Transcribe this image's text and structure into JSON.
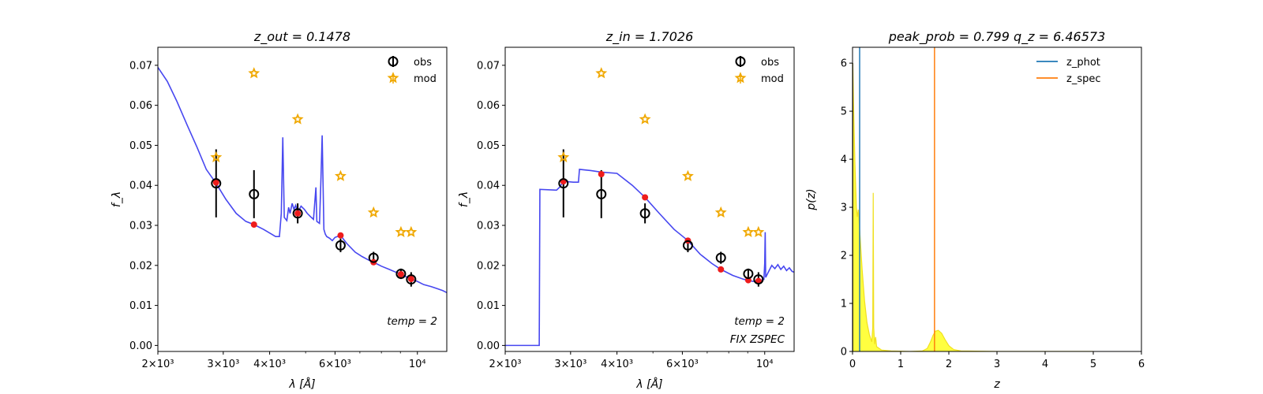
{
  "figure": {
    "background": "#ffffff"
  },
  "chart_data": [
    {
      "type": "scatter",
      "title_math": "z_{out} = 0.1478",
      "title_plain": "z_out = 0.1478",
      "xlabel": "λ [Å]",
      "ylabel": "f_λ",
      "x_scale": "log",
      "xlim": [
        2000,
        12000
      ],
      "ylim": [
        -0.0015,
        0.0745
      ],
      "y_ticks": [
        0.0,
        0.01,
        0.02,
        0.03,
        0.04,
        0.05,
        0.06,
        0.07
      ],
      "y_tick_labels": [
        "0.00",
        "0.01",
        "0.02",
        "0.03",
        "0.04",
        "0.05",
        "0.06",
        "0.07"
      ],
      "x_ticks": [
        2000,
        3000,
        4000,
        6000,
        10000
      ],
      "x_tick_labels": [
        "2×10³",
        "3×10³",
        "4×10³",
        "6×10³",
        "10⁴"
      ],
      "legend": {
        "position": "top-right",
        "entries": [
          "obs",
          "mod"
        ]
      },
      "annotations": [
        "temp = 2"
      ],
      "series": [
        {
          "name": "obs",
          "style": "open-circle-errorbar",
          "points": [
            {
              "x": 2870,
              "y": 0.0405,
              "err": 0.0085
            },
            {
              "x": 3630,
              "y": 0.0378,
              "err": 0.006
            },
            {
              "x": 4760,
              "y": 0.033,
              "err": 0.0025
            },
            {
              "x": 6210,
              "y": 0.025,
              "err": 0.0017
            },
            {
              "x": 7620,
              "y": 0.0219,
              "err": 0.0015
            },
            {
              "x": 9030,
              "y": 0.0179,
              "err": 0.0013
            },
            {
              "x": 9620,
              "y": 0.0165,
              "err": 0.0018
            }
          ]
        },
        {
          "name": "mod",
          "style": "star",
          "points": [
            {
              "x": 2870,
              "y": 0.047
            },
            {
              "x": 3630,
              "y": 0.068
            },
            {
              "x": 4760,
              "y": 0.0565
            },
            {
              "x": 6210,
              "y": 0.0423
            },
            {
              "x": 7620,
              "y": 0.0332
            },
            {
              "x": 9030,
              "y": 0.0283
            },
            {
              "x": 9620,
              "y": 0.0283
            }
          ]
        },
        {
          "name": "",
          "style": "red-dot",
          "points": [
            {
              "x": 2870,
              "y": 0.0407
            },
            {
              "x": 3630,
              "y": 0.0302
            },
            {
              "x": 4760,
              "y": 0.033
            },
            {
              "x": 6210,
              "y": 0.0275
            },
            {
              "x": 7620,
              "y": 0.0208
            },
            {
              "x": 9030,
              "y": 0.0178
            },
            {
              "x": 9620,
              "y": 0.0166
            }
          ]
        },
        {
          "name": "",
          "style": "line",
          "points": [
            {
              "x": 2000,
              "y": 0.0695
            },
            {
              "x": 2120,
              "y": 0.066
            },
            {
              "x": 2250,
              "y": 0.061
            },
            {
              "x": 2400,
              "y": 0.055
            },
            {
              "x": 2550,
              "y": 0.0495
            },
            {
              "x": 2700,
              "y": 0.044
            },
            {
              "x": 2870,
              "y": 0.0405
            },
            {
              "x": 3050,
              "y": 0.0365
            },
            {
              "x": 3250,
              "y": 0.033
            },
            {
              "x": 3450,
              "y": 0.031
            },
            {
              "x": 3630,
              "y": 0.0302
            },
            {
              "x": 3850,
              "y": 0.029
            },
            {
              "x": 4050,
              "y": 0.0278
            },
            {
              "x": 4150,
              "y": 0.0272
            },
            {
              "x": 4250,
              "y": 0.0272
            },
            {
              "x": 4300,
              "y": 0.033
            },
            {
              "x": 4340,
              "y": 0.052
            },
            {
              "x": 4380,
              "y": 0.032
            },
            {
              "x": 4450,
              "y": 0.0312
            },
            {
              "x": 4500,
              "y": 0.0345
            },
            {
              "x": 4540,
              "y": 0.033
            },
            {
              "x": 4600,
              "y": 0.0355
            },
            {
              "x": 4650,
              "y": 0.034
            },
            {
              "x": 4700,
              "y": 0.035
            },
            {
              "x": 4760,
              "y": 0.0332
            },
            {
              "x": 4860,
              "y": 0.0348
            },
            {
              "x": 4960,
              "y": 0.034
            },
            {
              "x": 5050,
              "y": 0.033
            },
            {
              "x": 5150,
              "y": 0.0322
            },
            {
              "x": 5250,
              "y": 0.0315
            },
            {
              "x": 5330,
              "y": 0.0395
            },
            {
              "x": 5360,
              "y": 0.031
            },
            {
              "x": 5450,
              "y": 0.0305
            },
            {
              "x": 5500,
              "y": 0.042
            },
            {
              "x": 5540,
              "y": 0.0525
            },
            {
              "x": 5600,
              "y": 0.029
            },
            {
              "x": 5650,
              "y": 0.0278
            },
            {
              "x": 5700,
              "y": 0.0272
            },
            {
              "x": 5800,
              "y": 0.0268
            },
            {
              "x": 5900,
              "y": 0.0262
            },
            {
              "x": 6000,
              "y": 0.027
            },
            {
              "x": 6210,
              "y": 0.0275
            },
            {
              "x": 6450,
              "y": 0.0255
            },
            {
              "x": 6800,
              "y": 0.0233
            },
            {
              "x": 7100,
              "y": 0.0222
            },
            {
              "x": 7400,
              "y": 0.0213
            },
            {
              "x": 7620,
              "y": 0.0208
            },
            {
              "x": 8000,
              "y": 0.0198
            },
            {
              "x": 8400,
              "y": 0.019
            },
            {
              "x": 8700,
              "y": 0.0184
            },
            {
              "x": 9030,
              "y": 0.0178
            },
            {
              "x": 9300,
              "y": 0.0172
            },
            {
              "x": 9620,
              "y": 0.0166
            },
            {
              "x": 10000,
              "y": 0.016
            },
            {
              "x": 10400,
              "y": 0.0152
            },
            {
              "x": 10900,
              "y": 0.0147
            },
            {
              "x": 11300,
              "y": 0.0142
            },
            {
              "x": 11700,
              "y": 0.0137
            },
            {
              "x": 12000,
              "y": 0.0132
            }
          ]
        }
      ]
    },
    {
      "type": "scatter",
      "title_math": "z_{in} = 1.7026",
      "title_plain": "z_in = 1.7026",
      "xlabel": "λ [Å]",
      "ylabel": "f_λ",
      "x_scale": "log",
      "xlim": [
        2000,
        12000
      ],
      "ylim": [
        -0.0015,
        0.0745
      ],
      "y_ticks": [
        0.0,
        0.01,
        0.02,
        0.03,
        0.04,
        0.05,
        0.06,
        0.07
      ],
      "y_tick_labels": [
        "0.00",
        "0.01",
        "0.02",
        "0.03",
        "0.04",
        "0.05",
        "0.06",
        "0.07"
      ],
      "x_ticks": [
        2000,
        3000,
        4000,
        6000,
        10000
      ],
      "x_tick_labels": [
        "2×10³",
        "3×10³",
        "4×10³",
        "6×10³",
        "10⁴"
      ],
      "legend": {
        "position": "top-right",
        "entries": [
          "obs",
          "mod"
        ]
      },
      "annotations": [
        "temp = 2",
        "FIX ZSPEC"
      ],
      "series": [
        {
          "name": "obs",
          "style": "open-circle-errorbar",
          "points": [
            {
              "x": 2870,
              "y": 0.0405,
              "err": 0.0085
            },
            {
              "x": 3630,
              "y": 0.0378,
              "err": 0.006
            },
            {
              "x": 4760,
              "y": 0.033,
              "err": 0.0025
            },
            {
              "x": 6210,
              "y": 0.025,
              "err": 0.0017
            },
            {
              "x": 7620,
              "y": 0.0219,
              "err": 0.0015
            },
            {
              "x": 9030,
              "y": 0.0179,
              "err": 0.0013
            },
            {
              "x": 9620,
              "y": 0.0165,
              "err": 0.0018
            }
          ]
        },
        {
          "name": "mod",
          "style": "star",
          "points": [
            {
              "x": 2870,
              "y": 0.047
            },
            {
              "x": 3630,
              "y": 0.068
            },
            {
              "x": 4760,
              "y": 0.0565
            },
            {
              "x": 6210,
              "y": 0.0423
            },
            {
              "x": 7620,
              "y": 0.0332
            },
            {
              "x": 9030,
              "y": 0.0283
            },
            {
              "x": 9620,
              "y": 0.0283
            }
          ]
        },
        {
          "name": "",
          "style": "red-dot",
          "points": [
            {
              "x": 2870,
              "y": 0.041
            },
            {
              "x": 3630,
              "y": 0.0428
            },
            {
              "x": 4760,
              "y": 0.037
            },
            {
              "x": 6210,
              "y": 0.0262
            },
            {
              "x": 7620,
              "y": 0.019
            },
            {
              "x": 9030,
              "y": 0.0163
            },
            {
              "x": 9620,
              "y": 0.0161
            }
          ]
        },
        {
          "name": "",
          "style": "line",
          "points": [
            {
              "x": 2000,
              "y": 0.0
            },
            {
              "x": 2470,
              "y": 0.0
            },
            {
              "x": 2480,
              "y": 0.039
            },
            {
              "x": 2750,
              "y": 0.0388
            },
            {
              "x": 2800,
              "y": 0.0395
            },
            {
              "x": 2870,
              "y": 0.041
            },
            {
              "x": 3050,
              "y": 0.0408
            },
            {
              "x": 3150,
              "y": 0.0408
            },
            {
              "x": 3170,
              "y": 0.044
            },
            {
              "x": 3400,
              "y": 0.0437
            },
            {
              "x": 3630,
              "y": 0.0433
            },
            {
              "x": 4000,
              "y": 0.043
            },
            {
              "x": 4400,
              "y": 0.04
            },
            {
              "x": 4760,
              "y": 0.037
            },
            {
              "x": 5200,
              "y": 0.033
            },
            {
              "x": 5700,
              "y": 0.029
            },
            {
              "x": 6210,
              "y": 0.0262
            },
            {
              "x": 6700,
              "y": 0.0228
            },
            {
              "x": 7200,
              "y": 0.0205
            },
            {
              "x": 7620,
              "y": 0.019
            },
            {
              "x": 8200,
              "y": 0.0175
            },
            {
              "x": 8800,
              "y": 0.0165
            },
            {
              "x": 9300,
              "y": 0.016
            },
            {
              "x": 9700,
              "y": 0.0162
            },
            {
              "x": 9950,
              "y": 0.0165
            },
            {
              "x": 10000,
              "y": 0.0205
            },
            {
              "x": 10030,
              "y": 0.0283
            },
            {
              "x": 10060,
              "y": 0.017
            },
            {
              "x": 10250,
              "y": 0.0185
            },
            {
              "x": 10450,
              "y": 0.02
            },
            {
              "x": 10650,
              "y": 0.0192
            },
            {
              "x": 10850,
              "y": 0.0202
            },
            {
              "x": 11050,
              "y": 0.019
            },
            {
              "x": 11250,
              "y": 0.0198
            },
            {
              "x": 11450,
              "y": 0.0187
            },
            {
              "x": 11650,
              "y": 0.0194
            },
            {
              "x": 11850,
              "y": 0.0185
            },
            {
              "x": 12000,
              "y": 0.0183
            }
          ]
        }
      ]
    },
    {
      "type": "area",
      "title_math": "peak_prob = 0.799     q_z = 6.46573",
      "title_plain": "peak_prob = 0.799     q_z = 6.46573",
      "xlabel": "z",
      "ylabel": "p(z)",
      "xlim": [
        0,
        6
      ],
      "ylim": [
        0,
        6.33
      ],
      "x_ticks": [
        0,
        1,
        2,
        3,
        4,
        5,
        6
      ],
      "x_tick_labels": [
        "0",
        "1",
        "2",
        "3",
        "4",
        "5",
        "6"
      ],
      "y_ticks": [
        0,
        1,
        2,
        3,
        4,
        5,
        6
      ],
      "y_tick_labels": [
        "0",
        "1",
        "2",
        "3",
        "4",
        "5",
        "6"
      ],
      "legend": {
        "position": "top-right",
        "entries": [
          "z_phot",
          "z_spec"
        ]
      },
      "vlines": [
        {
          "name": "z_phot",
          "x": 0.1478,
          "color": "#1f77b4"
        },
        {
          "name": "z_spec",
          "x": 1.7026,
          "color": "#ff7f0e"
        }
      ],
      "pz_fill_color": "#ffff00",
      "pz_line_color": "#f0e020",
      "pz": [
        {
          "x": 0.0,
          "y": 0.0
        },
        {
          "x": 0.005,
          "y": 6.0
        },
        {
          "x": 0.02,
          "y": 5.2
        },
        {
          "x": 0.05,
          "y": 3.9
        },
        {
          "x": 0.08,
          "y": 3.0
        },
        {
          "x": 0.1,
          "y": 2.8
        },
        {
          "x": 0.12,
          "y": 2.95
        },
        {
          "x": 0.15,
          "y": 2.5
        },
        {
          "x": 0.2,
          "y": 1.7
        },
        {
          "x": 0.25,
          "y": 1.05
        },
        {
          "x": 0.3,
          "y": 0.6
        },
        {
          "x": 0.35,
          "y": 0.35
        },
        {
          "x": 0.4,
          "y": 0.2
        },
        {
          "x": 0.42,
          "y": 0.5
        },
        {
          "x": 0.43,
          "y": 3.3
        },
        {
          "x": 0.44,
          "y": 0.5
        },
        {
          "x": 0.46,
          "y": 0.15
        },
        {
          "x": 0.48,
          "y": 0.3
        },
        {
          "x": 0.5,
          "y": 0.1
        },
        {
          "x": 0.6,
          "y": 0.03
        },
        {
          "x": 0.8,
          "y": 0.01
        },
        {
          "x": 1.2,
          "y": 0.0
        },
        {
          "x": 1.45,
          "y": 0.01
        },
        {
          "x": 1.55,
          "y": 0.06
        },
        {
          "x": 1.62,
          "y": 0.2
        },
        {
          "x": 1.67,
          "y": 0.33
        },
        {
          "x": 1.72,
          "y": 0.42
        },
        {
          "x": 1.78,
          "y": 0.44
        },
        {
          "x": 1.85,
          "y": 0.38
        },
        {
          "x": 1.92,
          "y": 0.25
        },
        {
          "x": 2.0,
          "y": 0.12
        },
        {
          "x": 2.1,
          "y": 0.04
        },
        {
          "x": 2.25,
          "y": 0.01
        },
        {
          "x": 3.0,
          "y": 0.0
        },
        {
          "x": 5.0,
          "y": 0.0
        }
      ],
      "pz_line_end": 5.0
    }
  ]
}
